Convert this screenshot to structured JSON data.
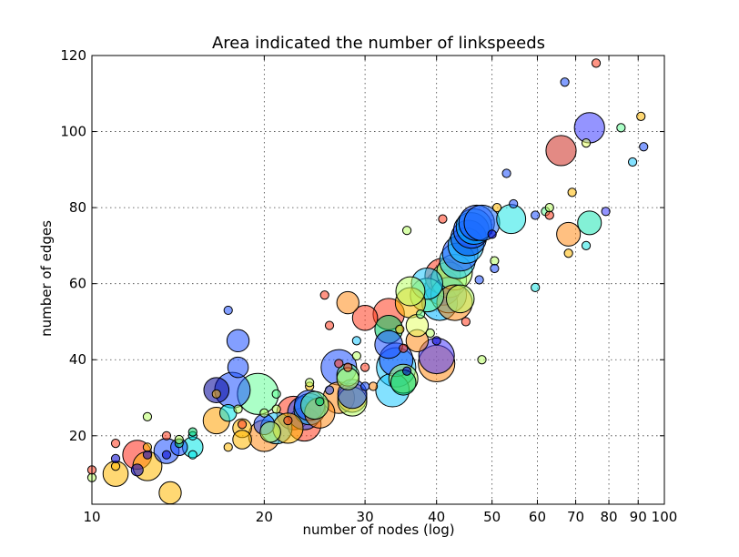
{
  "chart_data": {
    "type": "scatter",
    "title": "Area indicated the number of linkspeeds",
    "xlabel": "number of nodes (log)",
    "ylabel": "number of edges",
    "xscale": "log",
    "xlim": [
      10,
      100
    ],
    "ylim": [
      2,
      120
    ],
    "grid": true,
    "x_ticks": [
      10,
      20,
      30,
      40,
      50,
      60,
      70,
      80,
      90,
      100
    ],
    "x_tick_labels": [
      "10",
      "20",
      "30",
      "40",
      "50",
      "60",
      "70",
      "80",
      "90",
      "100"
    ],
    "y_ticks": [
      20,
      40,
      60,
      80,
      100,
      120
    ],
    "y_tick_labels": [
      "20",
      "40",
      "60",
      "80",
      "100",
      "120"
    ],
    "points": [
      {
        "x": 10,
        "y": 9,
        "size": 1,
        "color": "#b9ff66"
      },
      {
        "x": 10,
        "y": 11,
        "size": 1,
        "color": "#ff3d1f"
      },
      {
        "x": 11,
        "y": 10,
        "size": 9,
        "color": "#ffb800"
      },
      {
        "x": 11,
        "y": 12,
        "size": 1,
        "color": "#ffb800"
      },
      {
        "x": 11,
        "y": 14,
        "size": 1,
        "color": "#0000cc"
      },
      {
        "x": 11,
        "y": 18,
        "size": 1,
        "color": "#ff3d1f"
      },
      {
        "x": 12,
        "y": 15,
        "size": 12,
        "color": "#ff2a1a"
      },
      {
        "x": 12,
        "y": 11,
        "size": 2,
        "color": "#0000cc"
      },
      {
        "x": 12.5,
        "y": 12,
        "size": 12,
        "color": "#ffb800"
      },
      {
        "x": 12.5,
        "y": 15,
        "size": 1,
        "color": "#0000cc"
      },
      {
        "x": 12.5,
        "y": 17,
        "size": 1,
        "color": "#ffb800"
      },
      {
        "x": 12.5,
        "y": 25,
        "size": 1,
        "color": "#b9ff66"
      },
      {
        "x": 13.5,
        "y": 16,
        "size": 9,
        "color": "#1e50ff"
      },
      {
        "x": 13.5,
        "y": 20,
        "size": 1,
        "color": "#ff3d1f"
      },
      {
        "x": 13.5,
        "y": 15,
        "size": 1,
        "color": "#0000cc"
      },
      {
        "x": 13.7,
        "y": 5,
        "size": 7,
        "color": "#ffb800"
      },
      {
        "x": 14.2,
        "y": 17,
        "size": 4,
        "color": "#1e50ff"
      },
      {
        "x": 14.2,
        "y": 18,
        "size": 1,
        "color": "#00cc66"
      },
      {
        "x": 14.2,
        "y": 19,
        "size": 1,
        "color": "#b9ff66"
      },
      {
        "x": 15,
        "y": 17,
        "size": 6,
        "color": "#00e5e5"
      },
      {
        "x": 15,
        "y": 15,
        "size": 1,
        "color": "#00e5e5"
      },
      {
        "x": 15,
        "y": 20,
        "size": 1,
        "color": "#00e5e5"
      },
      {
        "x": 15,
        "y": 21,
        "size": 1,
        "color": "#00cc66"
      },
      {
        "x": 16.5,
        "y": 24,
        "size": 10,
        "color": "#ffa000"
      },
      {
        "x": 16.5,
        "y": 32,
        "size": 9,
        "color": "#000099"
      },
      {
        "x": 16.5,
        "y": 31,
        "size": 1,
        "color": "#ffb800"
      },
      {
        "x": 17.3,
        "y": 26,
        "size": 4,
        "color": "#00e5e5"
      },
      {
        "x": 17.3,
        "y": 17,
        "size": 1,
        "color": "#ffb800"
      },
      {
        "x": 17.3,
        "y": 53,
        "size": 1,
        "color": "#1e50ff"
      },
      {
        "x": 17.6,
        "y": 32,
        "size": 18,
        "color": "#1e50ff"
      },
      {
        "x": 18,
        "y": 45,
        "size": 7,
        "color": "#1e50ff"
      },
      {
        "x": 18,
        "y": 38,
        "size": 6,
        "color": "#1e50ff"
      },
      {
        "x": 18,
        "y": 27,
        "size": 1,
        "color": "#b9ff66"
      },
      {
        "x": 18.3,
        "y": 22,
        "size": 5,
        "color": "#ffb800"
      },
      {
        "x": 18.3,
        "y": 19,
        "size": 5,
        "color": "#ffb800"
      },
      {
        "x": 18.3,
        "y": 23,
        "size": 1,
        "color": "#ff3d1f"
      },
      {
        "x": 19.5,
        "y": 31,
        "size": 24,
        "color": "#66ff99"
      },
      {
        "x": 20,
        "y": 20,
        "size": 14,
        "color": "#ff8c1a"
      },
      {
        "x": 20,
        "y": 23,
        "size": 6,
        "color": "#1e50ff"
      },
      {
        "x": 20,
        "y": 26,
        "size": 1,
        "color": "#b9ff66"
      },
      {
        "x": 20.5,
        "y": 21,
        "size": 6,
        "color": "#b9ff66"
      },
      {
        "x": 21,
        "y": 22,
        "size": 14,
        "color": "#1ec8ff"
      },
      {
        "x": 21,
        "y": 27,
        "size": 1,
        "color": "#b9ff66"
      },
      {
        "x": 21,
        "y": 31,
        "size": 1,
        "color": "#66ff99"
      },
      {
        "x": 22,
        "y": 22,
        "size": 13,
        "color": "#ffb800"
      },
      {
        "x": 22,
        "y": 24,
        "size": 1,
        "color": "#ff3d1f"
      },
      {
        "x": 22.5,
        "y": 26,
        "size": 16,
        "color": "#ff3d1f"
      },
      {
        "x": 23.5,
        "y": 23,
        "size": 16,
        "color": "#ff3d1f"
      },
      {
        "x": 23.5,
        "y": 26,
        "size": 16,
        "color": "#1e50ff"
      },
      {
        "x": 24,
        "y": 28,
        "size": 13,
        "color": "#1e50ff"
      },
      {
        "x": 24,
        "y": 27,
        "size": 14,
        "color": "#1ec8ff"
      },
      {
        "x": 24,
        "y": 33,
        "size": 1,
        "color": "#ffb800"
      },
      {
        "x": 24,
        "y": 34,
        "size": 1,
        "color": "#b9ff66"
      },
      {
        "x": 24.5,
        "y": 28,
        "size": 11,
        "color": "#66ff99"
      },
      {
        "x": 25,
        "y": 29,
        "size": 1,
        "color": "#00cc66"
      },
      {
        "x": 25,
        "y": 26,
        "size": 13,
        "color": "#ff8c1a"
      },
      {
        "x": 25.5,
        "y": 57,
        "size": 1,
        "color": "#ff3d1f"
      },
      {
        "x": 26,
        "y": 32,
        "size": 1,
        "color": "#1e50ff"
      },
      {
        "x": 26,
        "y": 49,
        "size": 1,
        "color": "#ff3d1f"
      },
      {
        "x": 27,
        "y": 38,
        "size": 18,
        "color": "#1e50ff"
      },
      {
        "x": 27,
        "y": 30,
        "size": 14,
        "color": "#ff8c1a"
      },
      {
        "x": 27,
        "y": 39,
        "size": 1,
        "color": "#ff3d1f"
      },
      {
        "x": 28,
        "y": 55,
        "size": 7,
        "color": "#ff8c1a"
      },
      {
        "x": 28,
        "y": 36,
        "size": 7,
        "color": "#66ff99"
      },
      {
        "x": 28,
        "y": 35,
        "size": 7,
        "color": "#b9ff66"
      },
      {
        "x": 28,
        "y": 38,
        "size": 1,
        "color": "#ff3d1f"
      },
      {
        "x": 28.5,
        "y": 30,
        "size": 12,
        "color": "#ff8c1a"
      },
      {
        "x": 28.5,
        "y": 29,
        "size": 12,
        "color": "#b9ff66"
      },
      {
        "x": 28.5,
        "y": 31,
        "size": 12,
        "color": "#1e50ff"
      },
      {
        "x": 29,
        "y": 45,
        "size": 1,
        "color": "#1ec8ff"
      },
      {
        "x": 29,
        "y": 41,
        "size": 1,
        "color": "#b9ff66"
      },
      {
        "x": 30,
        "y": 51,
        "size": 9,
        "color": "#ff3d1f"
      },
      {
        "x": 30,
        "y": 38,
        "size": 1,
        "color": "#ff3d1f"
      },
      {
        "x": 30,
        "y": 33,
        "size": 1,
        "color": "#1e50ff"
      },
      {
        "x": 31,
        "y": 33,
        "size": 1,
        "color": "#ff8c1a"
      },
      {
        "x": 33,
        "y": 52,
        "size": 14,
        "color": "#ff3d1f"
      },
      {
        "x": 33,
        "y": 48,
        "size": 11,
        "color": "#00cc66"
      },
      {
        "x": 33,
        "y": 44,
        "size": 11,
        "color": "#1e50ff"
      },
      {
        "x": 33.5,
        "y": 32,
        "size": 16,
        "color": "#1ec8ff"
      },
      {
        "x": 34,
        "y": 38,
        "size": 22,
        "color": "#1ec8ff"
      },
      {
        "x": 34,
        "y": 40,
        "size": 16,
        "color": "#1e50ff"
      },
      {
        "x": 34.5,
        "y": 48,
        "size": 1,
        "color": "#ffb800"
      },
      {
        "x": 35,
        "y": 35,
        "size": 12,
        "color": "#b9ff66"
      },
      {
        "x": 35,
        "y": 34,
        "size": 9,
        "color": "#00cc66"
      },
      {
        "x": 35,
        "y": 43,
        "size": 1,
        "color": "#ff3d1f"
      },
      {
        "x": 35.5,
        "y": 37,
        "size": 1,
        "color": "#0000cc"
      },
      {
        "x": 35.5,
        "y": 74,
        "size": 1,
        "color": "#b9ff66"
      },
      {
        "x": 36,
        "y": 58,
        "size": 12,
        "color": "#b9ff66"
      },
      {
        "x": 36,
        "y": 55,
        "size": 13,
        "color": "#ffb800"
      },
      {
        "x": 37,
        "y": 45,
        "size": 7,
        "color": "#ff8c1a"
      },
      {
        "x": 37,
        "y": 49,
        "size": 7,
        "color": "#e5ff66"
      },
      {
        "x": 37.5,
        "y": 52,
        "size": 1,
        "color": "#66ff99"
      },
      {
        "x": 38.5,
        "y": 57,
        "size": 16,
        "color": "#66ff99"
      },
      {
        "x": 38.5,
        "y": 60,
        "size": 14,
        "color": "#1ec8ff"
      },
      {
        "x": 39,
        "y": 47,
        "size": 1,
        "color": "#b9ff66"
      },
      {
        "x": 40,
        "y": 39,
        "size": 19,
        "color": "#ff8c1a"
      },
      {
        "x": 40,
        "y": 41,
        "size": 18,
        "color": "#4b3cff"
      },
      {
        "x": 40,
        "y": 45,
        "size": 1,
        "color": "#0000cc"
      },
      {
        "x": 40.5,
        "y": 55,
        "size": 18,
        "color": "#00b4ff"
      },
      {
        "x": 41,
        "y": 59,
        "size": 18,
        "color": "#1e50ff"
      },
      {
        "x": 41,
        "y": 62,
        "size": 18,
        "color": "#ff3d1f"
      },
      {
        "x": 41,
        "y": 77,
        "size": 1,
        "color": "#ff3d1f"
      },
      {
        "x": 42,
        "y": 61,
        "size": 18,
        "color": "#66ff99"
      },
      {
        "x": 42,
        "y": 57,
        "size": 18,
        "color": "#1ec8ff"
      },
      {
        "x": 43,
        "y": 63,
        "size": 18,
        "color": "#b9ff66"
      },
      {
        "x": 43,
        "y": 55,
        "size": 18,
        "color": "#ff8c1a"
      },
      {
        "x": 43.5,
        "y": 66,
        "size": 18,
        "color": "#1ec8ff"
      },
      {
        "x": 44,
        "y": 68,
        "size": 18,
        "color": "#1e50ff"
      },
      {
        "x": 44,
        "y": 56,
        "size": 11,
        "color": "#b9ff66"
      },
      {
        "x": 45,
        "y": 70,
        "size": 18,
        "color": "#1ec8ff"
      },
      {
        "x": 45,
        "y": 50,
        "size": 1,
        "color": "#ff3d1f"
      },
      {
        "x": 45.5,
        "y": 72,
        "size": 18,
        "color": "#0050e6"
      },
      {
        "x": 46,
        "y": 74,
        "size": 18,
        "color": "#1e50ff"
      },
      {
        "x": 46.5,
        "y": 75,
        "size": 18,
        "color": "#00b4ff"
      },
      {
        "x": 47,
        "y": 76,
        "size": 18,
        "color": "#1e50ff"
      },
      {
        "x": 47.5,
        "y": 61,
        "size": 1,
        "color": "#1e50ff"
      },
      {
        "x": 48,
        "y": 40,
        "size": 1,
        "color": "#b9ff66"
      },
      {
        "x": 48,
        "y": 76,
        "size": 18,
        "color": "#1e6eff"
      },
      {
        "x": 50,
        "y": 73,
        "size": 1,
        "color": "#0000cc"
      },
      {
        "x": 50.5,
        "y": 66,
        "size": 1,
        "color": "#b9ff66"
      },
      {
        "x": 50.5,
        "y": 64,
        "size": 1,
        "color": "#1e50ff"
      },
      {
        "x": 51,
        "y": 80,
        "size": 1,
        "color": "#ffb800"
      },
      {
        "x": 53,
        "y": 89,
        "size": 1,
        "color": "#1e50ff"
      },
      {
        "x": 54,
        "y": 77,
        "size": 12,
        "color": "#1ee5e5"
      },
      {
        "x": 54.5,
        "y": 81,
        "size": 1,
        "color": "#1e50ff"
      },
      {
        "x": 59.5,
        "y": 59,
        "size": 1,
        "color": "#1ee5e5"
      },
      {
        "x": 59.5,
        "y": 78,
        "size": 1,
        "color": "#1e50ff"
      },
      {
        "x": 62,
        "y": 79,
        "size": 1,
        "color": "#66ff99"
      },
      {
        "x": 63,
        "y": 78,
        "size": 1,
        "color": "#ff3d1f"
      },
      {
        "x": 63,
        "y": 80,
        "size": 1,
        "color": "#b9ff66"
      },
      {
        "x": 66,
        "y": 95,
        "size": 13,
        "color": "#cc2a1f"
      },
      {
        "x": 67,
        "y": 113,
        "size": 1,
        "color": "#1e50ff"
      },
      {
        "x": 68,
        "y": 73,
        "size": 8,
        "color": "#ff8c1a"
      },
      {
        "x": 68,
        "y": 68,
        "size": 1,
        "color": "#ffb800"
      },
      {
        "x": 69,
        "y": 84,
        "size": 1,
        "color": "#ffb800"
      },
      {
        "x": 73,
        "y": 70,
        "size": 1,
        "color": "#1ee5e5"
      },
      {
        "x": 73,
        "y": 97,
        "size": 1,
        "color": "#e5ff66"
      },
      {
        "x": 74,
        "y": 101,
        "size": 13,
        "color": "#3c3cff"
      },
      {
        "x": 74,
        "y": 76,
        "size": 8,
        "color": "#1ee5b4"
      },
      {
        "x": 76,
        "y": 118,
        "size": 1,
        "color": "#ff3d1f"
      },
      {
        "x": 79,
        "y": 79,
        "size": 1,
        "color": "#3c3cff"
      },
      {
        "x": 84,
        "y": 101,
        "size": 1,
        "color": "#66ff99"
      },
      {
        "x": 88,
        "y": 92,
        "size": 1,
        "color": "#1ec8ff"
      },
      {
        "x": 91,
        "y": 104,
        "size": 1,
        "color": "#ffb800"
      },
      {
        "x": 92,
        "y": 96,
        "size": 1,
        "color": "#1e50ff"
      }
    ]
  }
}
